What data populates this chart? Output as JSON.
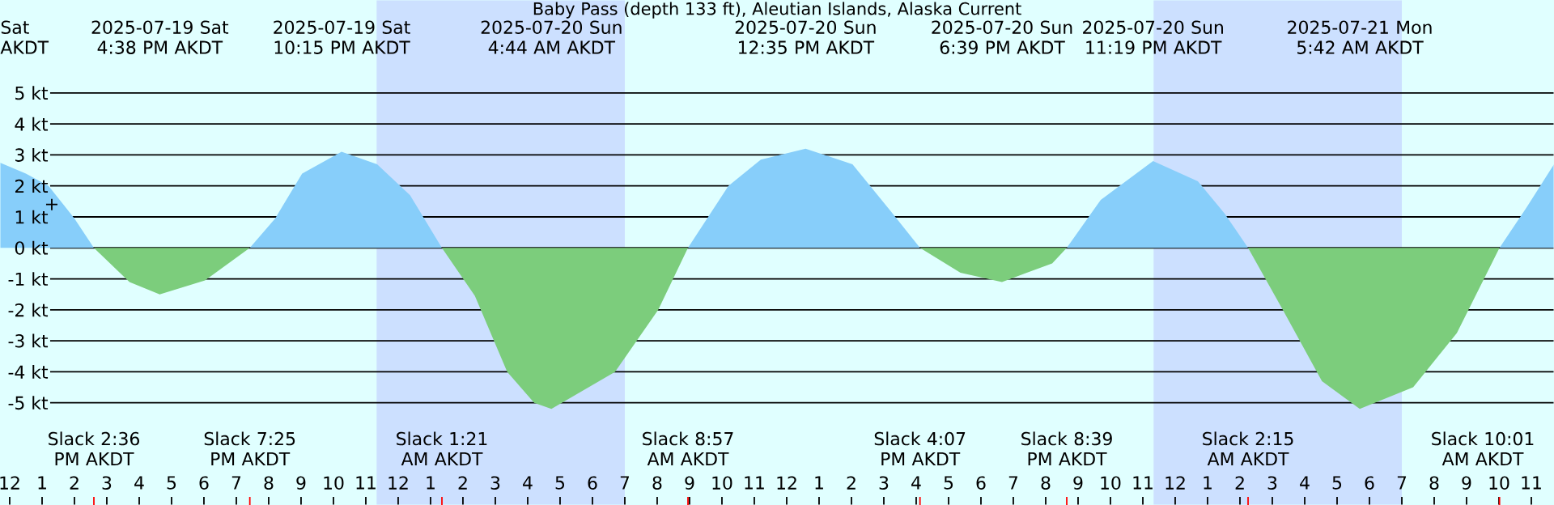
{
  "chart_data": {
    "type": "area",
    "title": "Baby Pass (depth 133 ft), Aleutian Islands, Alaska Current",
    "x": [
      "2025-07-19T11:42",
      "2025-07-19T12:30",
      "2025-07-19T13:12",
      "2025-07-19T14:00",
      "2025-07-19T14:36",
      "2025-07-19T15:42",
      "2025-07-19T16:38",
      "2025-07-19T18:02",
      "2025-07-19T19:25",
      "2025-07-19T20:12",
      "2025-07-19T21:02",
      "2025-07-19T22:15",
      "2025-07-19T23:21",
      "2025-07-20T00:22",
      "2025-07-20T01:21",
      "2025-07-20T02:22",
      "2025-07-20T03:22",
      "2025-07-20T04:12",
      "2025-07-20T04:44",
      "2025-07-20T06:42",
      "2025-07-20T08:02",
      "2025-07-20T08:57",
      "2025-07-20T10:12",
      "2025-07-20T11:12",
      "2025-07-20T12:35",
      "2025-07-20T14:02",
      "2025-07-20T15:12",
      "2025-07-20T16:07",
      "2025-07-20T17:22",
      "2025-07-20T18:39",
      "2025-07-20T20:12",
      "2025-07-20T20:39",
      "2025-07-20T21:42",
      "2025-07-20T23:19",
      "2025-07-21T00:42",
      "2025-07-21T01:32",
      "2025-07-21T02:15",
      "2025-07-21T03:21",
      "2025-07-21T04:32",
      "2025-07-21T05:42",
      "2025-07-21T07:21",
      "2025-07-21T08:42",
      "2025-07-21T10:01",
      "2025-07-21T10:51",
      "2025-07-21T11:42"
    ],
    "series": [
      {
        "color": "#87cefa",
        "values": [
          2.75,
          2.4,
          2.0,
          0.95,
          0,
          null,
          null,
          null,
          0,
          0.95,
          2.4,
          3.1,
          2.7,
          1.7,
          0,
          null,
          null,
          null,
          null,
          null,
          null,
          0,
          2.0,
          2.85,
          3.2,
          2.7,
          1.2,
          0,
          null,
          null,
          null,
          0,
          1.55,
          2.8,
          2.15,
          1.1,
          0,
          null,
          null,
          null,
          null,
          null,
          0,
          1.3,
          2.7
        ]
      },
      {
        "color": "#7ccd7c",
        "values": [
          null,
          null,
          null,
          null,
          0,
          -1.1,
          -1.5,
          -1.05,
          0,
          null,
          null,
          null,
          null,
          null,
          0,
          -1.55,
          -4.0,
          -5.0,
          -5.2,
          -4.0,
          -2.0,
          0,
          null,
          null,
          null,
          null,
          null,
          0,
          -0.8,
          -1.1,
          -0.5,
          0,
          null,
          null,
          null,
          null,
          0,
          -2.05,
          -4.3,
          -5.2,
          -4.5,
          -2.75,
          0,
          null,
          null
        ]
      },
      {
        "type": "scatter",
        "color": "#000000",
        "marker": "cross",
        "x": [
          "2025-07-19T13:18"
        ],
        "values": [
          1.4
        ]
      }
    ],
    "xlim": [
      "2025-07-19T11:42",
      "2025-07-21T11:42"
    ],
    "ylim": [
      -8.3,
      8
    ],
    "xticks": [
      {
        "value": "2025-07-19T12:00",
        "label": "12"
      },
      {
        "value": "2025-07-19T13:00",
        "label": "1"
      },
      {
        "value": "2025-07-19T14:00",
        "label": "2"
      },
      {
        "value": "2025-07-19T15:00",
        "label": "3"
      },
      {
        "value": "2025-07-19T16:00",
        "label": "4"
      },
      {
        "value": "2025-07-19T17:00",
        "label": "5"
      },
      {
        "value": "2025-07-19T18:00",
        "label": "6"
      },
      {
        "value": "2025-07-19T19:00",
        "label": "7"
      },
      {
        "value": "2025-07-19T20:00",
        "label": "8"
      },
      {
        "value": "2025-07-19T21:00",
        "label": "9"
      },
      {
        "value": "2025-07-19T22:00",
        "label": "10"
      },
      {
        "value": "2025-07-19T23:00",
        "label": "11"
      },
      {
        "value": "2025-07-20T00:00",
        "label": "12"
      },
      {
        "value": "2025-07-20T01:00",
        "label": "1"
      },
      {
        "value": "2025-07-20T02:00",
        "label": "2"
      },
      {
        "value": "2025-07-20T03:00",
        "label": "3"
      },
      {
        "value": "2025-07-20T04:00",
        "label": "4"
      },
      {
        "value": "2025-07-20T05:00",
        "label": "5"
      },
      {
        "value": "2025-07-20T06:00",
        "label": "6"
      },
      {
        "value": "2025-07-20T07:00",
        "label": "7"
      },
      {
        "value": "2025-07-20T08:00",
        "label": "8"
      },
      {
        "value": "2025-07-20T09:00",
        "label": "9"
      },
      {
        "value": "2025-07-20T10:00",
        "label": "10"
      },
      {
        "value": "2025-07-20T11:00",
        "label": "11"
      },
      {
        "value": "2025-07-20T12:00",
        "label": "12"
      },
      {
        "value": "2025-07-20T13:00",
        "label": "1"
      },
      {
        "value": "2025-07-20T14:00",
        "label": "2"
      },
      {
        "value": "2025-07-20T15:00",
        "label": "3"
      },
      {
        "value": "2025-07-20T16:00",
        "label": "4"
      },
      {
        "value": "2025-07-20T17:00",
        "label": "5"
      },
      {
        "value": "2025-07-20T18:00",
        "label": "6"
      },
      {
        "value": "2025-07-20T19:00",
        "label": "7"
      },
      {
        "value": "2025-07-20T20:00",
        "label": "8"
      },
      {
        "value": "2025-07-20T21:00",
        "label": "9"
      },
      {
        "value": "2025-07-20T22:00",
        "label": "10"
      },
      {
        "value": "2025-07-20T23:00",
        "label": "11"
      },
      {
        "value": "2025-07-21T00:00",
        "label": "12"
      },
      {
        "value": "2025-07-21T01:00",
        "label": "1"
      },
      {
        "value": "2025-07-21T02:00",
        "label": "2"
      },
      {
        "value": "2025-07-21T03:00",
        "label": "3"
      },
      {
        "value": "2025-07-21T04:00",
        "label": "4"
      },
      {
        "value": "2025-07-21T05:00",
        "label": "5"
      },
      {
        "value": "2025-07-21T06:00",
        "label": "6"
      },
      {
        "value": "2025-07-21T07:00",
        "label": "7"
      },
      {
        "value": "2025-07-21T08:00",
        "label": "8"
      },
      {
        "value": "2025-07-21T09:00",
        "label": "9"
      },
      {
        "value": "2025-07-21T10:00",
        "label": "10"
      },
      {
        "value": "2025-07-21T11:00",
        "label": "11"
      }
    ],
    "yticks": [
      {
        "value": -5,
        "label": "-5 kt"
      },
      {
        "value": -4,
        "label": "-4 kt"
      },
      {
        "value": -3,
        "label": "-3 kt"
      },
      {
        "value": -2,
        "label": "-2 kt"
      },
      {
        "value": -1,
        "label": "-1 kt"
      },
      {
        "value": 0,
        "label": "0 kt"
      },
      {
        "value": 1,
        "label": "1 kt"
      },
      {
        "value": 2,
        "label": "2 kt"
      },
      {
        "value": 3,
        "label": "3 kt"
      },
      {
        "value": 4,
        "label": "4 kt"
      },
      {
        "value": 5,
        "label": "5 kt"
      }
    ],
    "grid": "y",
    "bands": [
      {
        "axis": "x",
        "from": "2025-07-19T23:20",
        "to": "2025-07-20T07:00",
        "color": "#cce0ff"
      },
      {
        "axis": "x",
        "from": "2025-07-20T23:20",
        "to": "2025-07-21T07:00",
        "color": "#cce0ff"
      }
    ],
    "annotations": [
      "Sat AKDT",
      "2025-07-19 Sat 4:38 PM AKDT",
      "2025-07-19 Sat 10:15 PM AKDT",
      "2025-07-20 Sun 4:44 AM AKDT",
      "2025-07-20 Sun 12:35 PM AKDT",
      "2025-07-20 Sun 6:39 PM AKDT",
      "2025-07-20 Sun 11:19 PM AKDT",
      "2025-07-21 Mon 5:42 AM AKDT",
      "Slack 2:36 PM AKDT",
      "Slack 7:25 PM AKDT",
      "Slack 1:21 AM AKDT",
      "Slack 8:57 AM AKDT",
      "Slack 4:07 PM AKDT",
      "Slack 8:39 PM AKDT",
      "Slack 2:15 AM AKDT",
      "Slack 10:01 AM AKDT"
    ]
  }
}
